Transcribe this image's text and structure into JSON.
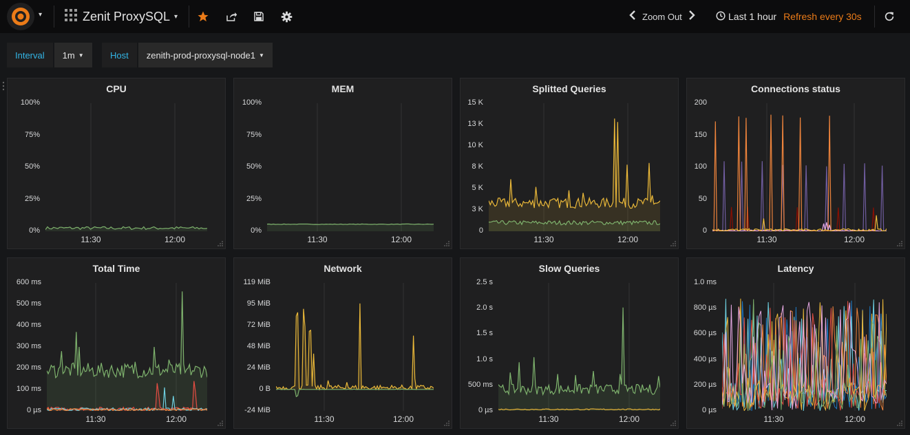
{
  "navbar": {
    "dashboard_title": "Zenit ProxySQL",
    "zoom_out_label": "Zoom Out",
    "time_range_label": "Last 1 hour",
    "refresh_label": "Refresh every 30s",
    "icons": [
      "grafana-logo-icon",
      "dashboard-grid-icon",
      "star-icon",
      "share-icon",
      "save-icon",
      "gear-icon",
      "chevron-left-icon",
      "chevron-right-icon",
      "clock-icon",
      "refresh-icon"
    ],
    "colors": {
      "star": "#eb7b18",
      "refresh_text": "#eb7b18",
      "logo": "#eb7b18"
    }
  },
  "variables": [
    {
      "label": "Interval",
      "value": "1m"
    },
    {
      "label": "Host",
      "value": "zenith-prod-proxysql-node1"
    }
  ],
  "panels": [
    {
      "title": "CPU",
      "y_ticks": [
        "100%",
        "75%",
        "50%",
        "25%",
        "0%"
      ],
      "x_ticks": [
        "11:30",
        "12:00"
      ]
    },
    {
      "title": "MEM",
      "y_ticks": [
        "100%",
        "75%",
        "50%",
        "25%",
        "0%"
      ],
      "x_ticks": [
        "11:30",
        "12:00"
      ]
    },
    {
      "title": "Splitted Queries",
      "y_ticks": [
        "15 K",
        "13 K",
        "10 K",
        "8 K",
        "5 K",
        "3 K",
        "0"
      ],
      "x_ticks": [
        "11:30",
        "12:00"
      ]
    },
    {
      "title": "Connections status",
      "y_ticks": [
        "200",
        "150",
        "100",
        "50",
        "0"
      ],
      "x_ticks": [
        "11:30",
        "12:00"
      ]
    },
    {
      "title": "Total Time",
      "y_ticks": [
        "600 ms",
        "500 ms",
        "400 ms",
        "300 ms",
        "200 ms",
        "100 ms",
        "0 µs"
      ],
      "x_ticks": [
        "11:30",
        "12:00"
      ]
    },
    {
      "title": "Network",
      "y_ticks": [
        "119 MiB",
        "95 MiB",
        "72 MiB",
        "48 MiB",
        "24 MiB",
        "0 B",
        "-24 MiB"
      ],
      "x_ticks": [
        "11:30",
        "12:00"
      ]
    },
    {
      "title": "Slow Queries",
      "y_ticks": [
        "2.5 s",
        "2.0 s",
        "1.5 s",
        "1.0 s",
        "500 ms",
        "0 µs"
      ],
      "x_ticks": [
        "11:30",
        "12:00"
      ]
    },
    {
      "title": "Latency",
      "y_ticks": [
        "1.0 ms",
        "800 µs",
        "600 µs",
        "400 µs",
        "200 µs",
        "0 µs"
      ],
      "x_ticks": [
        "11:30",
        "12:00"
      ]
    }
  ],
  "series_colors": {
    "green": "#7eb26d",
    "yellow": "#eab839",
    "orange": "#ef843c",
    "red": "#e24d42",
    "blue": "#1f78c1",
    "cyan": "#6ed0e0",
    "purple": "#705da0",
    "pink": "#e5a8e2",
    "dark_red": "#890f02"
  }
}
